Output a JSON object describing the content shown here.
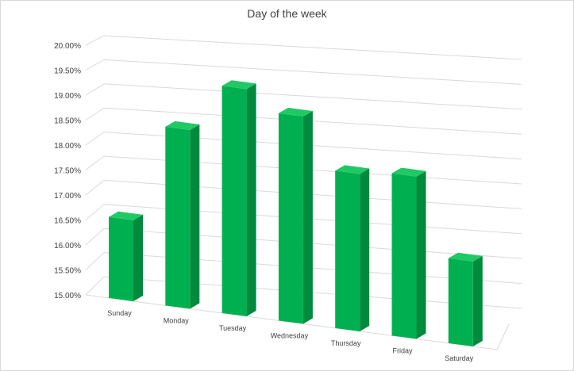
{
  "chart_data": {
    "type": "bar",
    "title": "Day of the week",
    "categories": [
      "Sunday",
      "Monday",
      "Tuesday",
      "Wednesday",
      "Thursday",
      "Friday",
      "Saturday"
    ],
    "values": [
      16.62,
      18.58,
      19.55,
      19.15,
      18.15,
      18.25,
      16.7
    ],
    "ylim": [
      15.0,
      20.0
    ],
    "yticks": [
      "15.00%",
      "15.50%",
      "16.00%",
      "16.50%",
      "17.00%",
      "17.50%",
      "18.00%",
      "18.50%",
      "19.00%",
      "19.50%",
      "20.00%"
    ],
    "grid": true,
    "legend": "none",
    "colors": {
      "bar_front": "#00b050",
      "bar_side": "#008a3e",
      "bar_top": "#1fc964",
      "grid": "#d9d9d9"
    }
  }
}
